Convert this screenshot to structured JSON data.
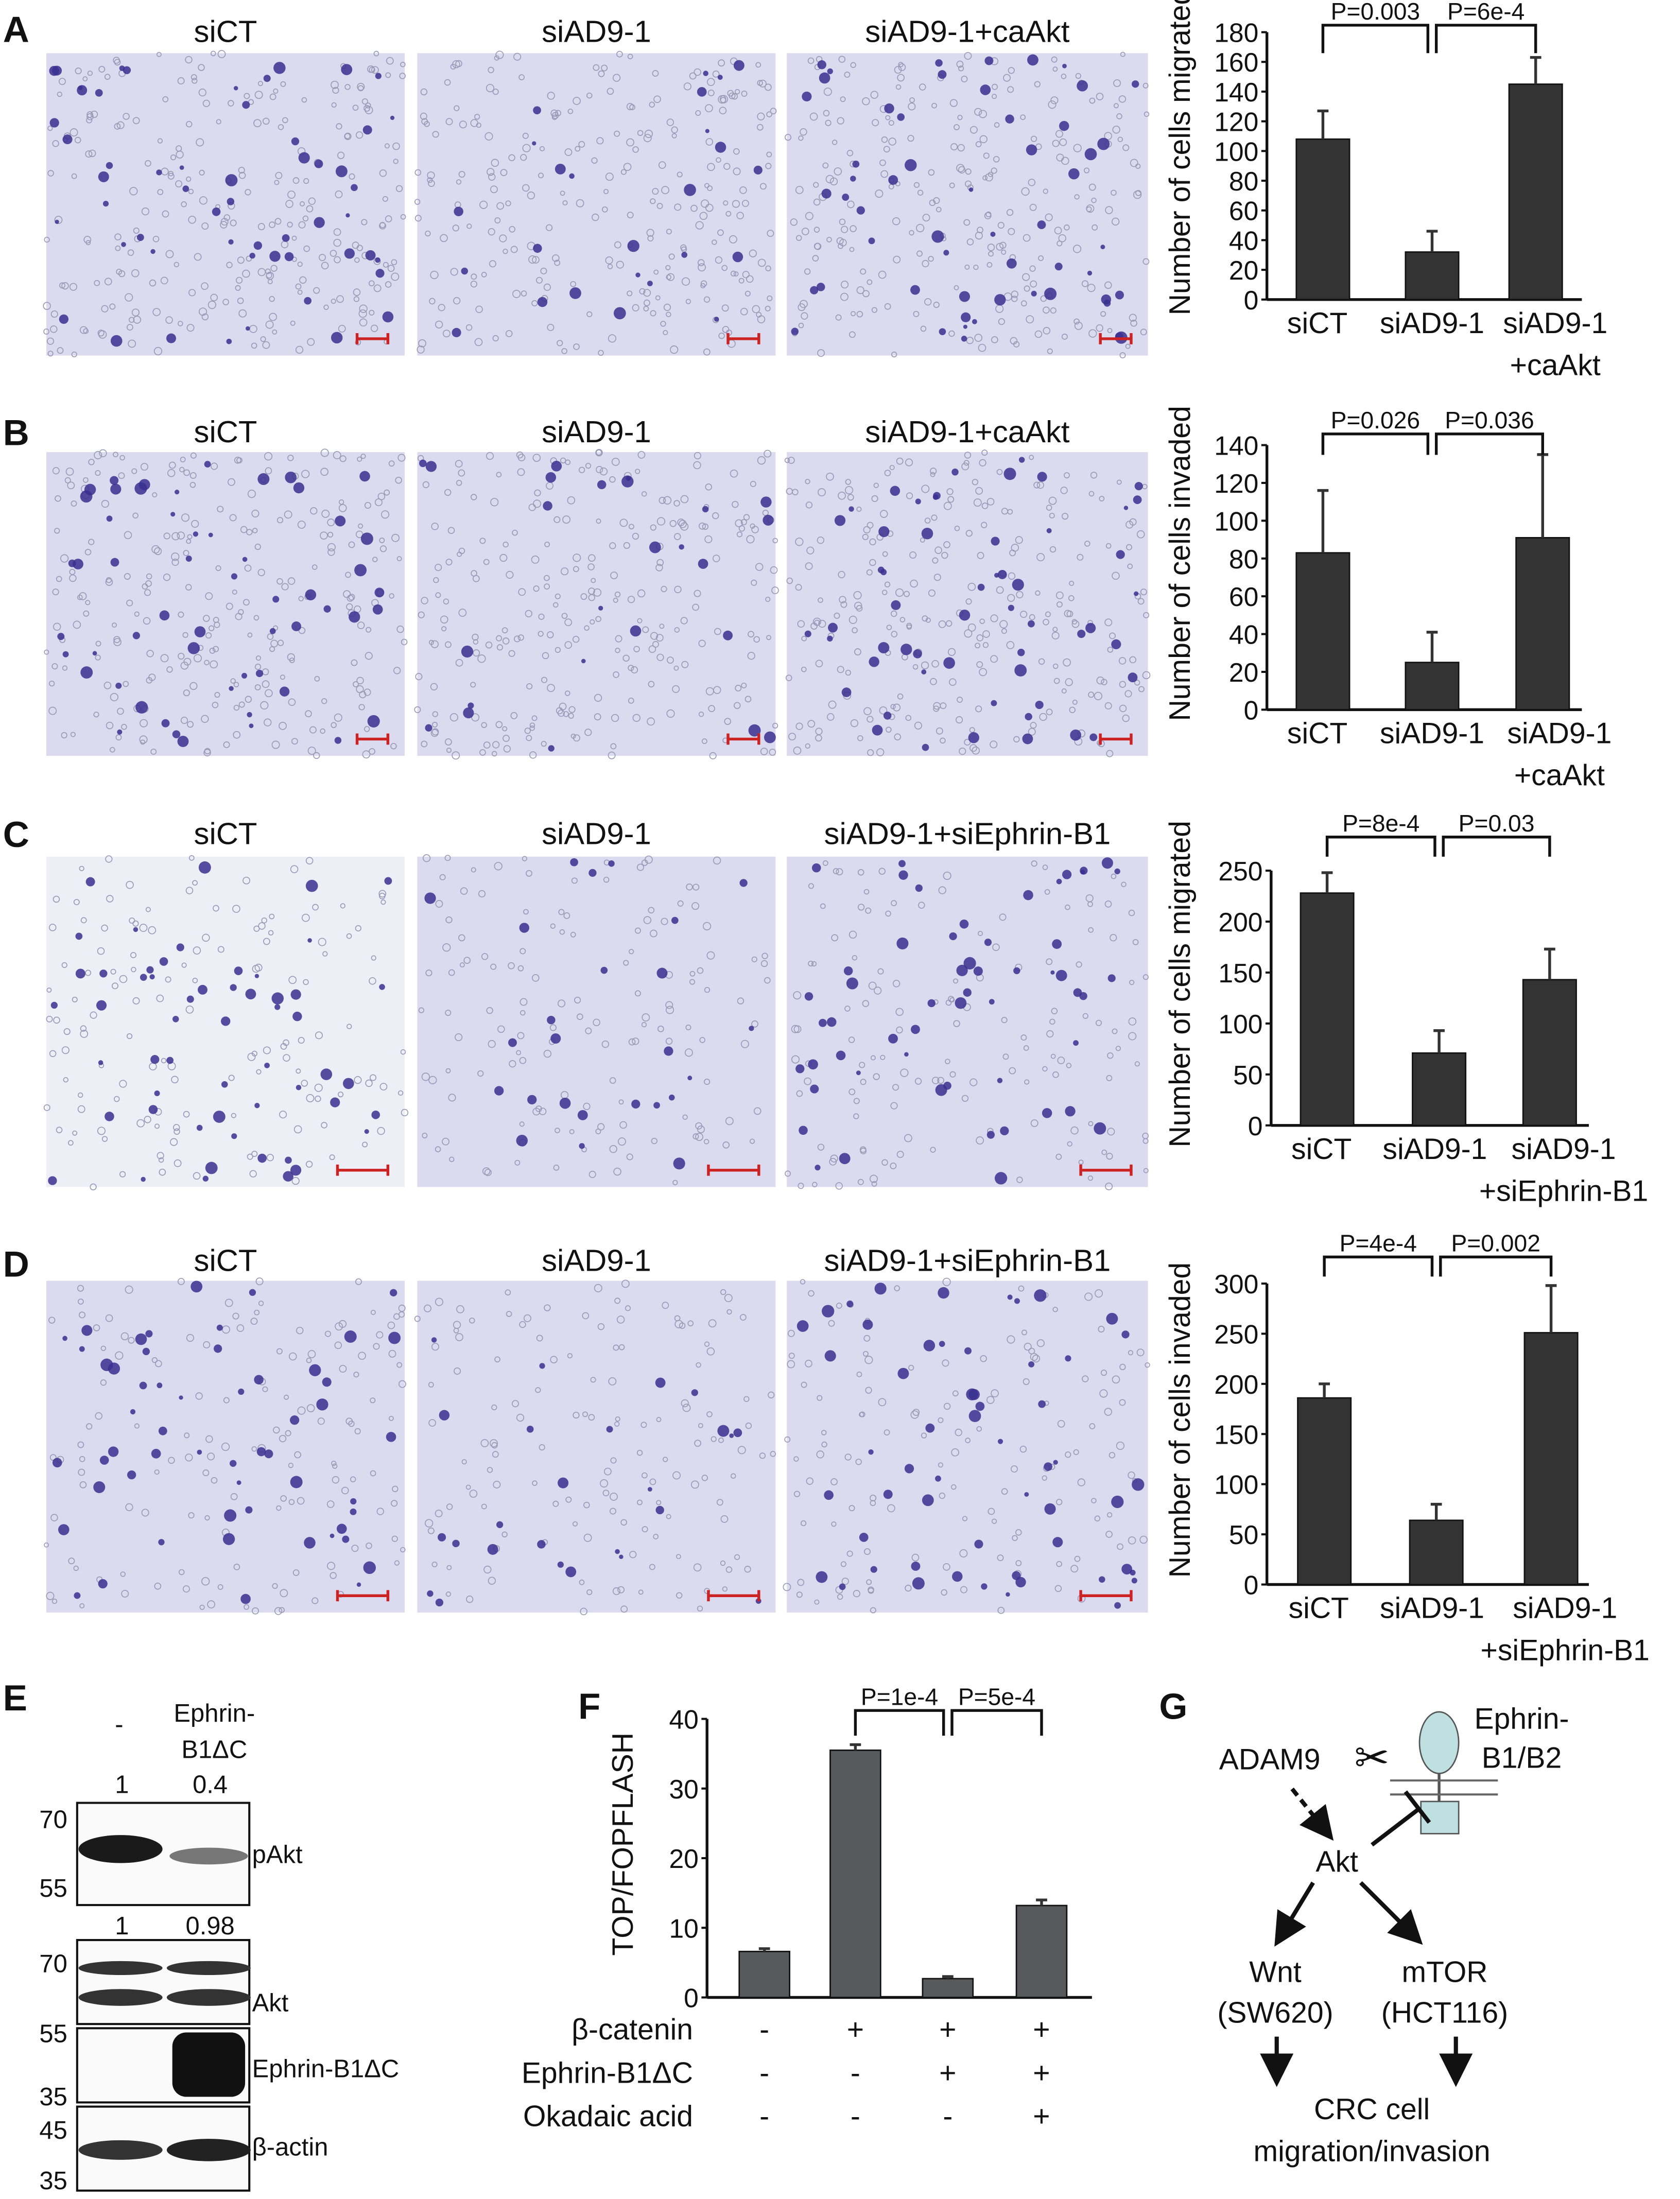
{
  "panel_labels": [
    "A",
    "B",
    "C",
    "D",
    "E",
    "F",
    "G"
  ],
  "colors": {
    "bar_dark": "#333333",
    "bar_gray": "#58595d",
    "micrograph_bg": "#dcdaee",
    "micrograph_bg_light": "#eeeef6",
    "cell_stain": "#3a2f8f",
    "scale_bar": "#cc2222",
    "ephrin_fill": "#bfe0e0"
  },
  "rows": [
    {
      "image_titles": [
        "siCT",
        "siAD9-1",
        "siAD9-1+caAkt"
      ]
    },
    {
      "image_titles": [
        "siCT",
        "siAD9-1",
        "siAD9-1+caAkt"
      ]
    },
    {
      "image_titles": [
        "siCT",
        "siAD9-1",
        "siAD9-1+siEphrin-B1"
      ]
    },
    {
      "image_titles": [
        "siCT",
        "siAD9-1",
        "siAD9-1+siEphrin-B1"
      ]
    }
  ],
  "chart_data": [
    {
      "type": "bar",
      "panel": "A",
      "ylabel": "Number of cells migrated",
      "ylim": [
        0,
        180
      ],
      "yticks": [
        0,
        20,
        40,
        60,
        80,
        100,
        120,
        140,
        160,
        180
      ],
      "categories": [
        [
          "siCT"
        ],
        [
          "siAD9-1"
        ],
        [
          "siAD9-1",
          "+caAkt"
        ]
      ],
      "values": [
        108,
        32,
        145
      ],
      "errors": [
        19,
        14,
        18
      ],
      "pvalues": [
        "P=0.003",
        "P=6e-4"
      ]
    },
    {
      "type": "bar",
      "panel": "B",
      "ylabel": "Number of cells invaded",
      "ylim": [
        0,
        140
      ],
      "yticks": [
        0,
        20,
        40,
        60,
        80,
        100,
        120,
        140
      ],
      "categories": [
        [
          "siCT"
        ],
        [
          "siAD9-1"
        ],
        [
          "siAD9-1",
          "+caAkt"
        ]
      ],
      "values": [
        83,
        25,
        91
      ],
      "errors": [
        33,
        16,
        44
      ],
      "pvalues": [
        "P=0.026",
        "P=0.036"
      ]
    },
    {
      "type": "bar",
      "panel": "C",
      "ylabel": "Number of cells migrated",
      "ylim": [
        0,
        250
      ],
      "yticks": [
        0,
        50,
        100,
        150,
        200,
        250
      ],
      "categories": [
        [
          "siCT"
        ],
        [
          "siAD9-1"
        ],
        [
          "siAD9-1",
          "+siEphrin-B1"
        ]
      ],
      "values": [
        228,
        71,
        143
      ],
      "errors": [
        20,
        22,
        30
      ],
      "pvalues": [
        "P=8e-4",
        "P=0.03"
      ]
    },
    {
      "type": "bar",
      "panel": "D",
      "ylabel": "Number of cells invaded",
      "ylim": [
        0,
        300
      ],
      "yticks": [
        0,
        50,
        100,
        150,
        200,
        250,
        300
      ],
      "categories": [
        [
          "siCT"
        ],
        [
          "siAD9-1"
        ],
        [
          "siAD9-1",
          "+siEphrin-B1"
        ]
      ],
      "values": [
        186,
        64,
        251
      ],
      "errors": [
        14,
        16,
        47
      ],
      "pvalues": [
        "P=4e-4",
        "P=0.002"
      ]
    },
    {
      "type": "bar",
      "panel": "F",
      "ylabel": "TOP/FOPFLASH",
      "ylim": [
        0,
        40
      ],
      "yticks": [
        0,
        10,
        20,
        30,
        40
      ],
      "values": [
        6.6,
        35.5,
        2.7,
        13.2
      ],
      "errors": [
        0.4,
        0.8,
        0.3,
        0.8
      ],
      "pvalues": [
        "P=1e-4",
        "P=5e-4"
      ],
      "conditions": [
        {
          "label": "β-catenin",
          "states": [
            "-",
            "+",
            "+",
            "+"
          ]
        },
        {
          "label": "Ephrin-B1ΔC",
          "states": [
            "-",
            "-",
            "+",
            "+"
          ]
        },
        {
          "label": "Okadaic acid",
          "states": [
            "-",
            "-",
            "-",
            "+"
          ]
        }
      ]
    }
  ],
  "blot": {
    "lanes": [
      "-",
      "Ephrin-",
      "B1ΔC"
    ],
    "quant_pakt": [
      "1",
      "0.4"
    ],
    "quant_akt": [
      "1",
      "0.98"
    ],
    "bands": [
      "pAkt",
      "Akt",
      "Ephrin-B1ΔC",
      "β-actin"
    ],
    "mw": {
      "pakt": [
        "70",
        "55"
      ],
      "akt": [
        "70",
        "55"
      ],
      "ephrin": [
        "35"
      ],
      "actin": [
        "45",
        "35"
      ]
    }
  },
  "diagram": {
    "adam9": "ADAM9",
    "ephrin": [
      "Ephrin-",
      "B1/B2"
    ],
    "akt": "Akt",
    "wnt": [
      "Wnt",
      "(SW620)"
    ],
    "mtor": [
      "mTOR",
      "(HCT116)"
    ],
    "outcome": [
      "CRC cell",
      "migration/invasion"
    ]
  }
}
